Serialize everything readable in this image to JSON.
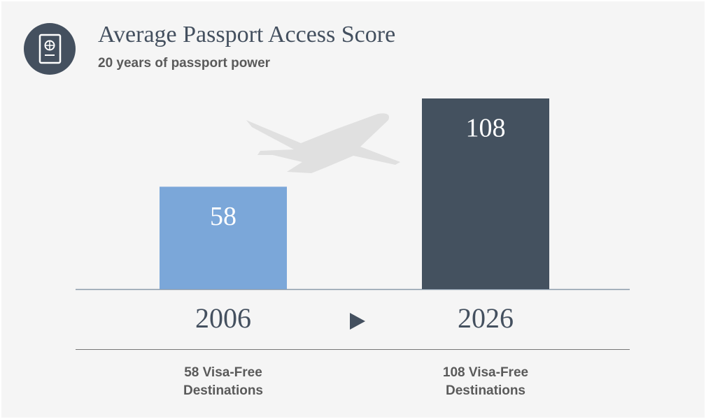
{
  "chart_data": {
    "type": "bar",
    "title": "Average Passport Access Score",
    "subtitle": "20 years of passport power",
    "categories": [
      "2006",
      "2026"
    ],
    "values": [
      58,
      108
    ],
    "colors": [
      "#7ba7d9",
      "#44515f"
    ],
    "captions": [
      [
        "58 Visa-Free",
        "Destinations"
      ],
      [
        "108 Visa-Free",
        "Destinations"
      ]
    ]
  }
}
